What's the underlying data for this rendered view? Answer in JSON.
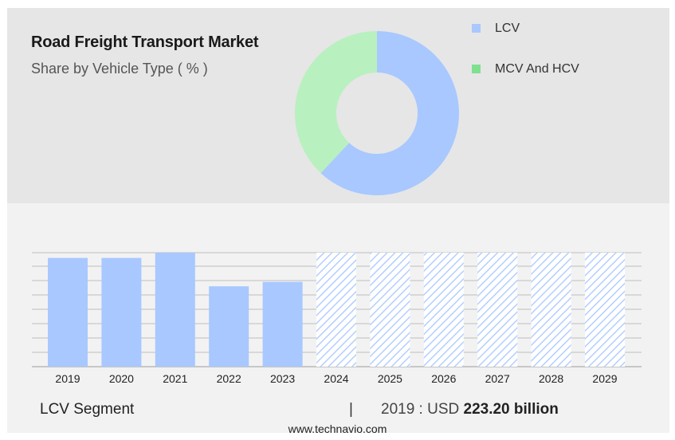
{
  "header": {
    "title": "Road Freight Transport Market",
    "subtitle": "Share by Vehicle Type ( % )"
  },
  "legend": [
    {
      "label": "LCV",
      "color": "#a8c8ff"
    },
    {
      "label": "MCV And HCV",
      "color": "#7fe08f"
    }
  ],
  "chart_data": [
    {
      "type": "pie",
      "donut": true,
      "labels": [
        "LCV",
        "MCV And HCV"
      ],
      "values": [
        62,
        38
      ],
      "colors": [
        "#a8c8ff",
        "#b9f0bf"
      ]
    },
    {
      "type": "bar",
      "categories": [
        "2019",
        "2020",
        "2021",
        "2022",
        "2023",
        "2024",
        "2025",
        "2026",
        "2027",
        "2028",
        "2029"
      ],
      "values": [
        223.2,
        223.2,
        234,
        165,
        174,
        234,
        234,
        234,
        234,
        234,
        234
      ],
      "forecast_start": "2024",
      "ylim": [
        0,
        270
      ],
      "grid": true,
      "color": "#a8c8ff"
    }
  ],
  "summary": {
    "segment": "LCV Segment",
    "divider": "|",
    "year_prefix": "2019 : USD",
    "amount": "223.20 billion"
  },
  "footer": {
    "site": "www.technavio.com"
  }
}
